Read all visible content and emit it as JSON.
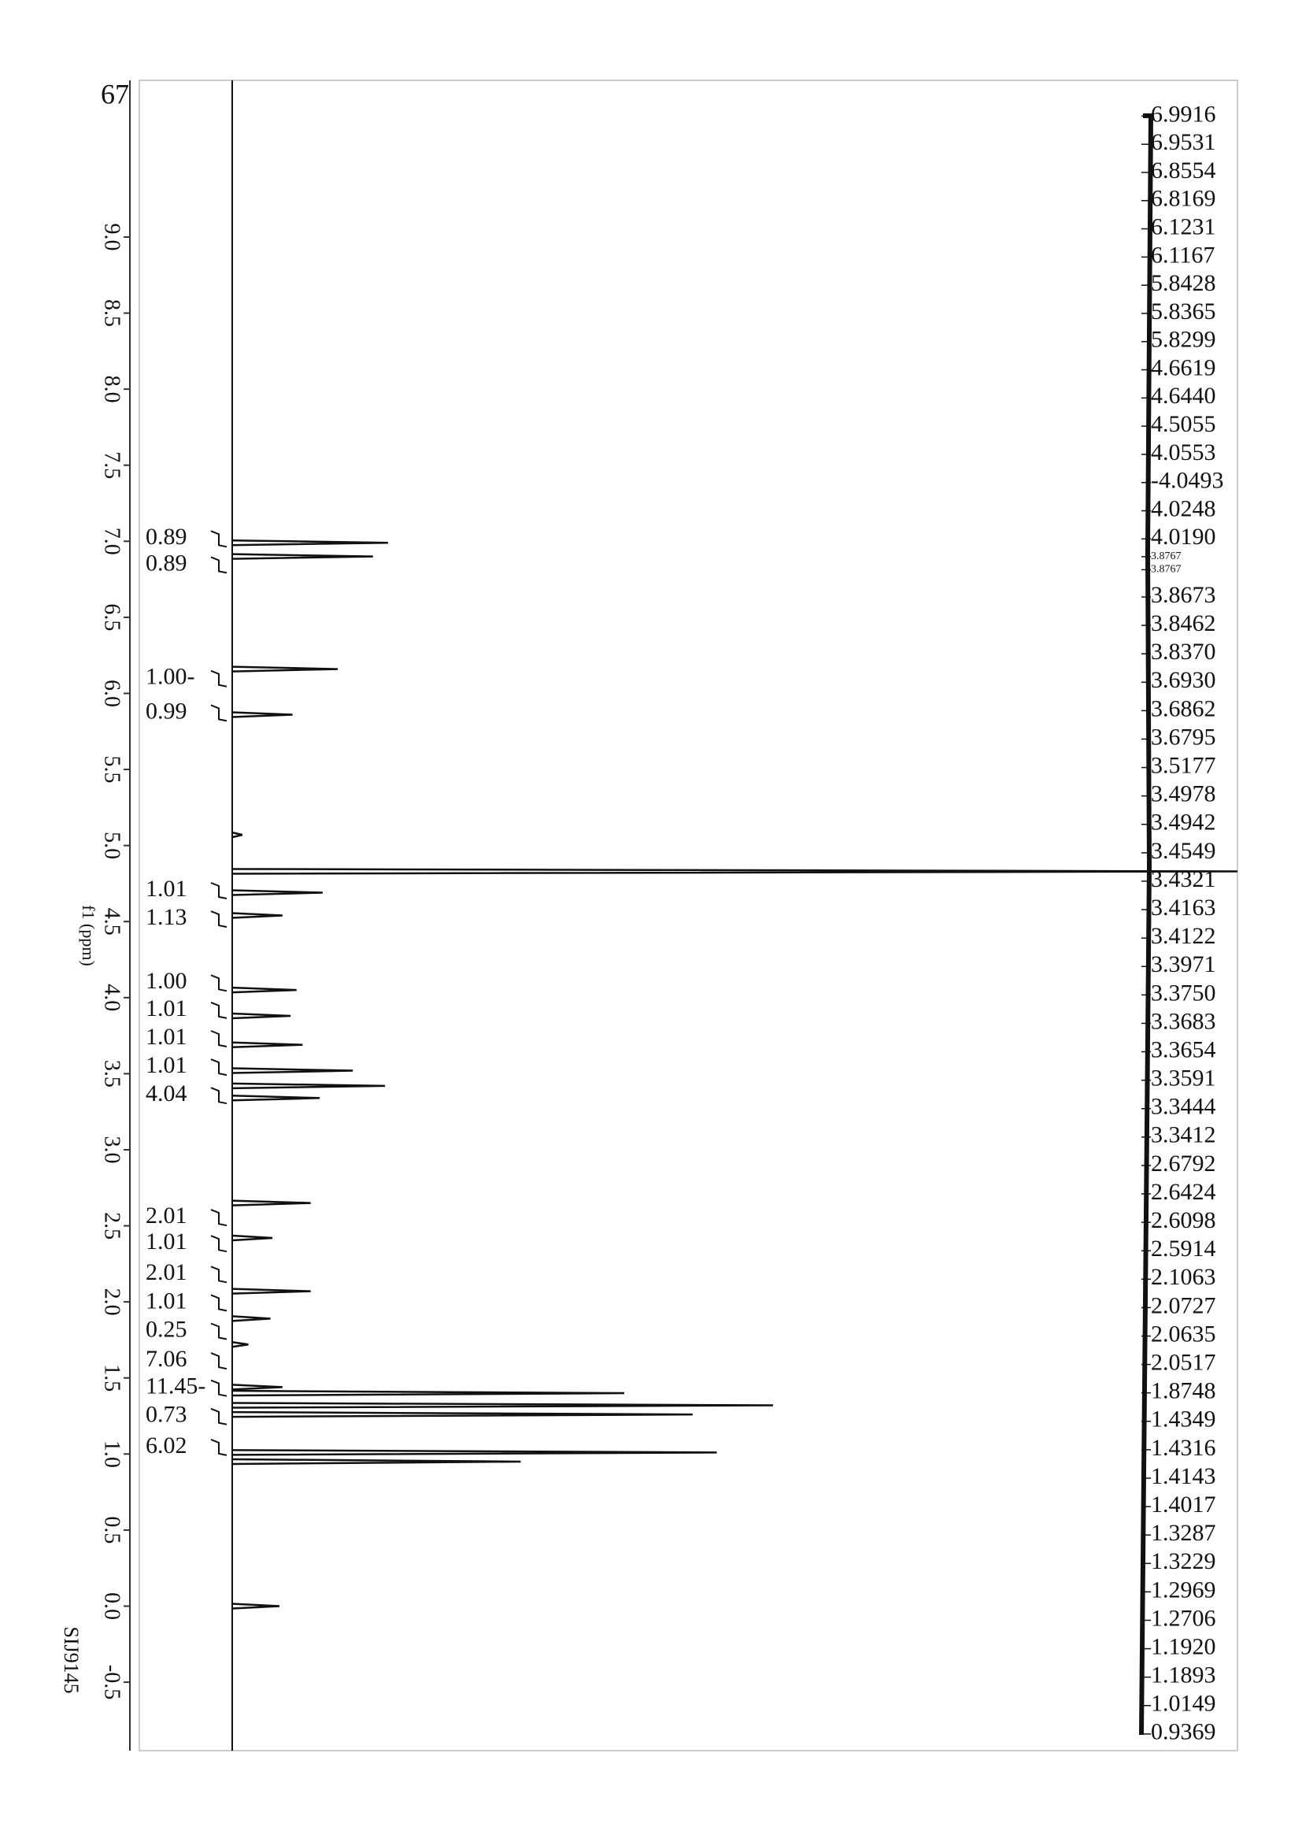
{
  "chart_data": {
    "type": "nmr",
    "corner_label": "67",
    "x_label": "f1 (ppm)",
    "sample_id": "SIJ9145",
    "xlim": [
      10.03,
      -0.95
    ],
    "xticks": [
      {
        "value": 9,
        "label": "9.0"
      },
      8.5,
      {
        "value": 8,
        "label": "8.0"
      },
      7.5,
      {
        "value": 7,
        "label": "7.0"
      },
      6.5,
      {
        "value": 6,
        "label": "6.0"
      },
      5.5,
      {
        "value": 5,
        "label": "5.0"
      },
      4.5,
      {
        "value": 4,
        "label": "4.0"
      },
      3.5,
      {
        "value": 3,
        "label": "3.0"
      },
      2.5,
      {
        "value": 2,
        "label": "2.0"
      },
      1.5,
      {
        "value": 1,
        "label": "1.0"
      },
      0.5,
      {
        "value": 0,
        "label": "0.0"
      },
      -0.5
    ],
    "ylim": [
      0,
      100
    ],
    "x": [
      6.99,
      6.9,
      6.16,
      5.86,
      5.07,
      4.83,
      4.69,
      4.54,
      4.05,
      3.88,
      3.69,
      3.52,
      3.42,
      3.34,
      2.65,
      2.42,
      2.07,
      1.89,
      1.72,
      1.44,
      1.4,
      1.32,
      1.26,
      1.01,
      0.95,
      0.0
    ],
    "values": [
      15.5,
      14,
      10.5,
      6,
      1,
      100,
      9,
      5,
      6.4,
      5.8,
      7,
      12,
      15.2,
      8.7,
      7.8,
      4,
      7.8,
      3.8,
      1.6,
      5,
      39,
      53.8,
      45.8,
      48.2,
      28.7,
      4.7
    ],
    "color": "#111111",
    "integrals": [
      "0.89",
      "0.89",
      "1.00-",
      "0.99",
      "1.01",
      "1.13",
      "1.00",
      "1.01",
      "1.01",
      "1.01",
      "4.04",
      "2.01",
      "1.01",
      "2.01",
      "1.01",
      "0.25",
      "7.06",
      "11.45-",
      "0.73",
      "6.02"
    ],
    "peak_labels": [
      "6.9916",
      "6.9531",
      "6.8554",
      "6.8169",
      "6.1231",
      "6.1167",
      "5.8428",
      "5.8365",
      "5.8299",
      "4.6619",
      "4.6440",
      "4.5055",
      "4.0553",
      "-4.0493",
      "4.0248",
      "4.0190",
      "3.8767",
      "3.8767",
      "3.8673",
      "3.8462",
      "3.8370",
      "3.6930",
      "3.6862",
      "3.6795",
      "3.5177",
      "3.4978",
      "3.4942",
      "3.4549",
      "3.4321",
      "3.4163",
      "3.4122",
      "3.3971",
      "3.3750",
      "3.3683",
      "3.3654",
      "3.3591",
      "3.3444",
      "3.3412",
      "2.6792",
      "2.6424",
      "2.6098",
      "2.5914",
      "2.1063",
      "2.0727",
      "2.0635",
      "2.0517",
      "1.8748",
      "1.4349",
      "1.4316",
      "1.4143",
      "1.4017",
      "1.3287",
      "1.3229",
      "1.2969",
      "1.2706",
      "1.1920",
      "1.1893",
      "1.0149",
      "0.9369"
    ]
  }
}
